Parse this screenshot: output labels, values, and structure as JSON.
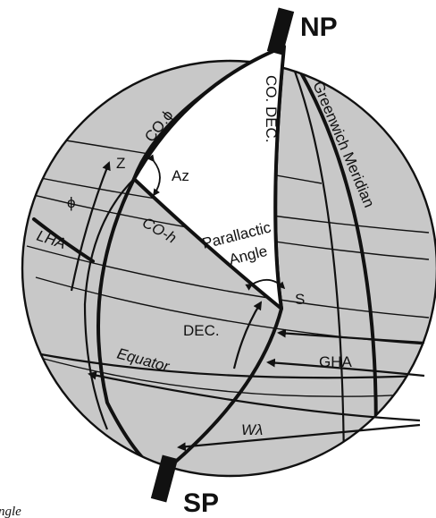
{
  "labels": {
    "north_pole": "NP",
    "south_pole": "SP",
    "co_latitude": "CO.ϕ",
    "co_declination": "CO. DEC.",
    "greenwich_meridian": "Greenwich Meridian",
    "zenith": "Z",
    "azimuth": "Az",
    "latitude": "ϕ",
    "co_altitude": "CO-h",
    "parallactic_angle_line1": "Parallactic",
    "parallactic_angle_line2": "Angle",
    "local_hour_angle": "LHA",
    "star": "S",
    "declination": "DEC.",
    "greenwich_hour_angle": "GHA",
    "equator": "Equator",
    "west_longitude": "Wλ",
    "caption_fragment": "ngle"
  },
  "colors": {
    "sphere_fill": "#c8c8c8",
    "triangle_fill": "#ffffff",
    "line": "#111111"
  }
}
